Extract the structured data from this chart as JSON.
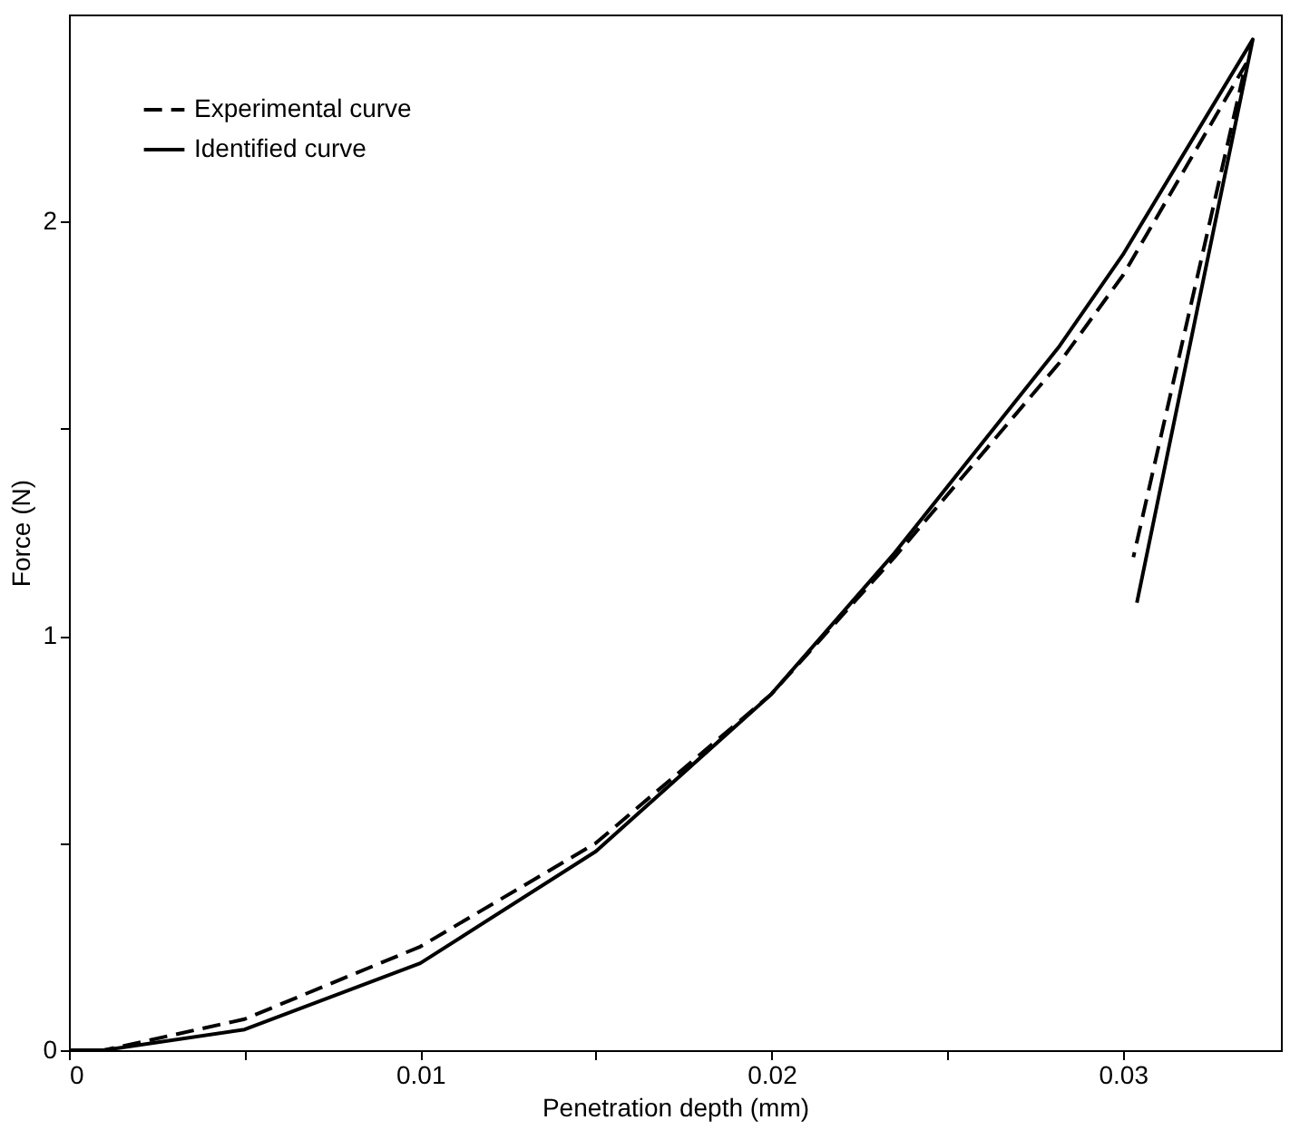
{
  "chart_data": {
    "type": "line",
    "xlabel": "Penetration depth (mm)",
    "ylabel": "Force (N)",
    "xlim": [
      0,
      0.0345
    ],
    "ylim": [
      0,
      2.5
    ],
    "xticks": [
      0,
      {
        "value": 0.005,
        "label": null
      },
      0.01,
      {
        "value": 0.015,
        "label": null
      },
      0.02,
      {
        "value": 0.025,
        "label": null
      },
      0.03
    ],
    "yticks": [
      0,
      {
        "value": 0.5,
        "label": null
      },
      1,
      {
        "value": 1.5,
        "label": null
      },
      2
    ],
    "legend": "top left",
    "grid": false,
    "marker": "none",
    "series": [
      {
        "name": "Experimental curve",
        "color": "#000000",
        "line_style": "dashed",
        "x": [
          0,
          0.001,
          0.005,
          0.01,
          0.015,
          0.02,
          0.0235,
          0.0282,
          0.03,
          0.0335,
          0.0303
        ],
        "values": [
          0,
          0,
          0.075,
          0.25,
          0.5,
          0.86,
          1.19,
          1.66,
          1.87,
          2.38,
          1.19
        ]
      },
      {
        "name": "Identified curve",
        "color": "#000000",
        "line_style": "solid",
        "x": [
          0,
          0.001,
          0.005,
          0.01,
          0.015,
          0.02,
          0.0235,
          0.0282,
          0.03,
          0.0337,
          0.0304
        ],
        "values": [
          0,
          0,
          0.05,
          0.21,
          0.48,
          0.86,
          1.2,
          1.7,
          1.92,
          2.44,
          1.08
        ]
      }
    ]
  }
}
